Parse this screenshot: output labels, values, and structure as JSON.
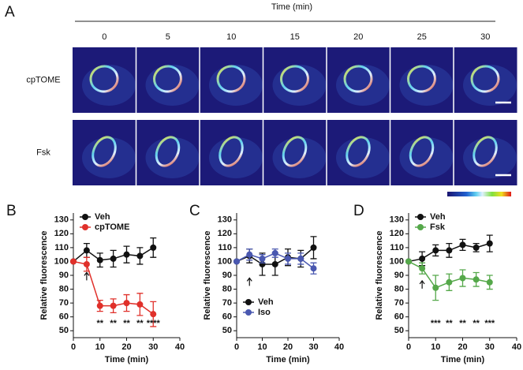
{
  "panel_a": {
    "panel_label": "A",
    "time_title": "Time (min)",
    "time_labels": [
      "0",
      "5",
      "10",
      "15",
      "20",
      "25",
      "30"
    ],
    "rows": [
      "cpTOME",
      "Fsk"
    ]
  },
  "chart_data": [
    {
      "type": "line",
      "panel_label": "B",
      "xlabel": "Time (min)",
      "ylabel": "Relative fluorescence",
      "x": [
        0,
        5,
        10,
        15,
        20,
        25,
        30
      ],
      "series": [
        {
          "name": "Veh",
          "color": "#111111",
          "values": [
            100,
            108,
            101,
            102,
            105,
            104,
            110
          ],
          "errors": [
            0,
            5,
            5,
            6,
            6,
            6,
            7
          ]
        },
        {
          "name": "cpTOME",
          "color": "#e0302a",
          "values": [
            100,
            98,
            68,
            68,
            70,
            69,
            62
          ],
          "errors": [
            0,
            5,
            4,
            5,
            6,
            8,
            9
          ]
        }
      ],
      "annotations": [
        {
          "x": 10,
          "label": "**"
        },
        {
          "x": 15,
          "label": "**"
        },
        {
          "x": 20,
          "label": "**"
        },
        {
          "x": 25,
          "label": "**"
        },
        {
          "x": 30,
          "label": "****"
        }
      ],
      "xlim": [
        0,
        40
      ],
      "xticks": [
        0,
        10,
        20,
        30,
        40
      ],
      "ylim": [
        45,
        135
      ],
      "yticks": [
        50,
        60,
        70,
        80,
        90,
        100,
        110,
        120,
        130
      ],
      "legend": "top-left"
    },
    {
      "type": "line",
      "panel_label": "C",
      "xlabel": "Time (min)",
      "ylabel": "Relative fluorescence",
      "x": [
        0,
        5,
        10,
        15,
        20,
        25,
        30
      ],
      "series": [
        {
          "name": "Veh",
          "color": "#111111",
          "values": [
            100,
            104,
            98,
            98,
            103,
            102,
            110
          ],
          "errors": [
            0,
            5,
            8,
            8,
            6,
            6,
            8
          ]
        },
        {
          "name": "Iso",
          "color": "#4a58b0",
          "values": [
            100,
            105,
            102,
            106,
            102,
            102,
            95
          ],
          "errors": [
            0,
            4,
            3,
            3,
            4,
            4,
            4
          ]
        }
      ],
      "annotations": [],
      "xlim": [
        0,
        40
      ],
      "xticks": [
        0,
        10,
        20,
        30,
        40
      ],
      "ylim": [
        45,
        135
      ],
      "yticks": [
        50,
        60,
        70,
        80,
        90,
        100,
        110,
        120,
        130
      ],
      "legend": "bottom-left"
    },
    {
      "type": "line",
      "panel_label": "D",
      "xlabel": "Time (min)",
      "ylabel": "Relative fluorescence",
      "x": [
        0,
        5,
        10,
        15,
        20,
        25,
        30
      ],
      "series": [
        {
          "name": "Veh",
          "color": "#111111",
          "values": [
            100,
            102,
            108,
            108,
            112,
            110,
            113
          ],
          "errors": [
            0,
            5,
            4,
            5,
            4,
            3,
            6
          ]
        },
        {
          "name": "Fsk",
          "color": "#55a84a",
          "values": [
            100,
            95,
            81,
            85,
            88,
            87,
            85
          ],
          "errors": [
            0,
            4,
            9,
            6,
            6,
            5,
            5
          ]
        }
      ],
      "annotations": [
        {
          "x": 10,
          "label": "***"
        },
        {
          "x": 15,
          "label": "**"
        },
        {
          "x": 20,
          "label": "**"
        },
        {
          "x": 25,
          "label": "**"
        },
        {
          "x": 30,
          "label": "***"
        }
      ],
      "xlim": [
        0,
        40
      ],
      "xticks": [
        0,
        10,
        20,
        30,
        40
      ],
      "ylim": [
        45,
        135
      ],
      "yticks": [
        50,
        60,
        70,
        80,
        90,
        100,
        110,
        120,
        130
      ],
      "legend": "top-left"
    }
  ]
}
